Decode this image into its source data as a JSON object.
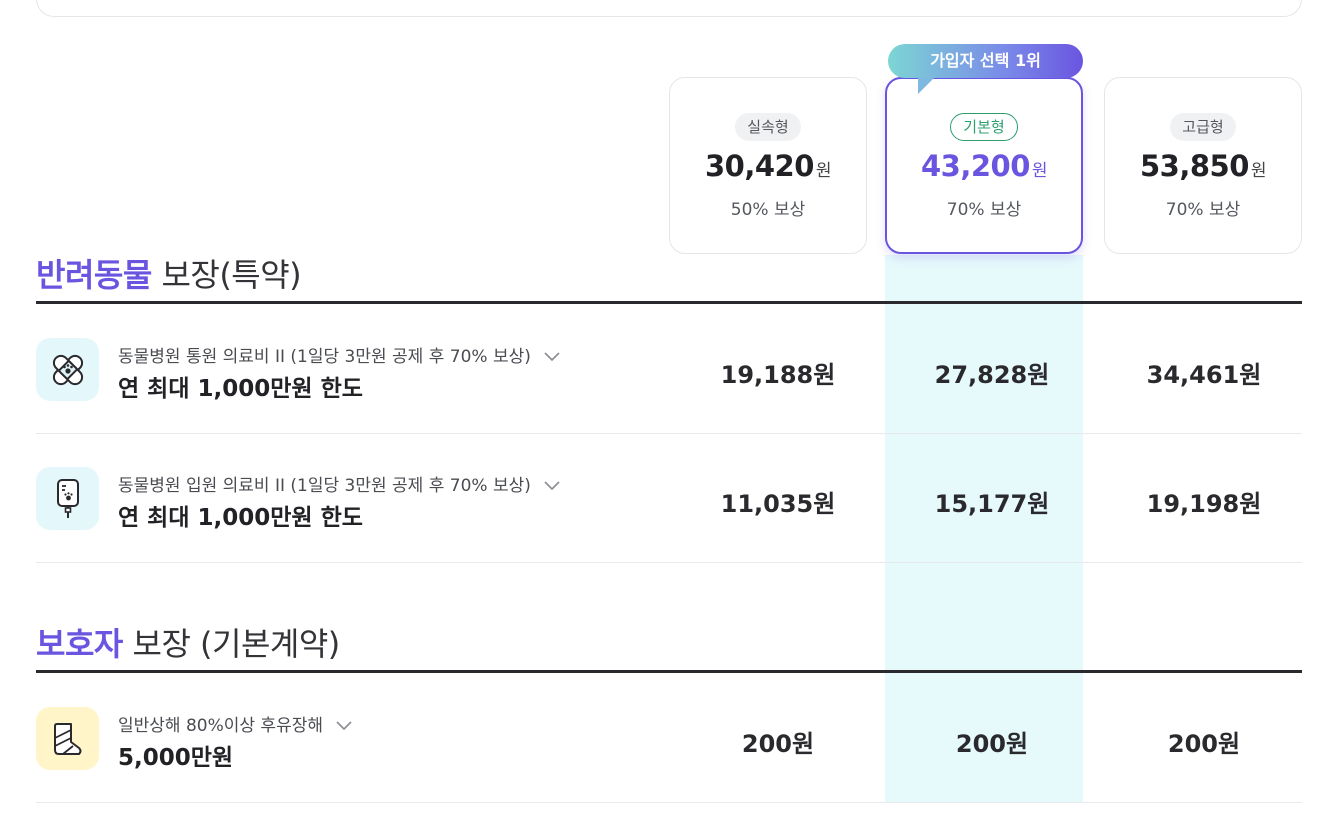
{
  "plans": [
    {
      "tag": "실속형",
      "price": "30,420",
      "unit": "원",
      "coverage": "50% 보상"
    },
    {
      "tag": "기본형",
      "price": "43,200",
      "unit": "원",
      "coverage": "70% 보상"
    },
    {
      "tag": "고급형",
      "price": "53,850",
      "unit": "원",
      "coverage": "70% 보상"
    }
  ],
  "popular_badge": "가입자 선택 1위",
  "sections": [
    {
      "accent": "반려동물",
      "rest": " 보장(특약)",
      "rows": [
        {
          "icon": "bandage-paw-icon",
          "sub": "동물병원 통원 의료비 II (1일당 3만원 공제 후 70% 보상)",
          "main": "연 최대 1,000만원 한도",
          "values": [
            "19,188원",
            "27,828원",
            "34,461원"
          ]
        },
        {
          "icon": "iv-drip-paw-icon",
          "sub": "동물병원 입원 의료비 II (1일당 3만원 공제 후 70% 보상)",
          "main": "연 최대 1,000만원 한도",
          "values": [
            "11,035원",
            "15,177원",
            "19,198원"
          ]
        }
      ]
    },
    {
      "accent": "보호자",
      "rest": " 보장 (기본계약)",
      "rows": [
        {
          "icon": "cast-leg-icon",
          "sub": "일반상해 80%이상 후유장해",
          "main": "5,000만원",
          "values": [
            "200원",
            "200원",
            "200원"
          ]
        }
      ]
    }
  ],
  "colors": {
    "accent": "#6a55e0",
    "highlight_column": "#e6f9fb",
    "tag_green": "#2e9e6f"
  }
}
